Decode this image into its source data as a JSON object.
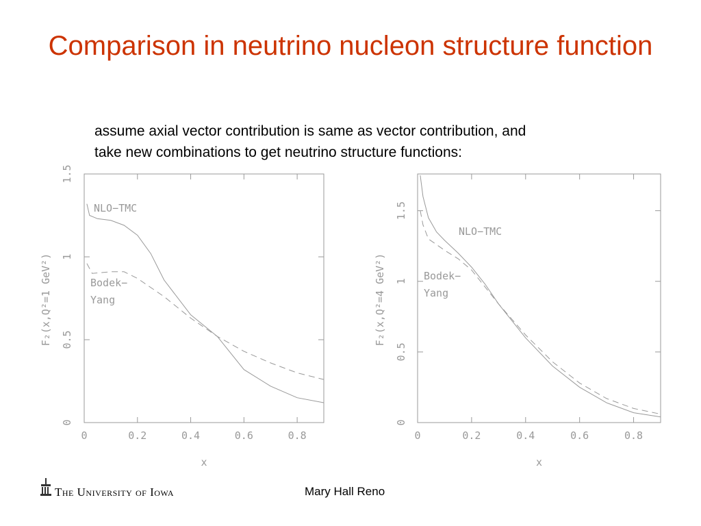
{
  "title": "Comparison in neutrino nucleon structure function",
  "body": [
    "assume axial vector contribution is same as vector contribution, and",
    "take new combinations to get neutrino structure functions:"
  ],
  "footer": {
    "logo": "The University of Iowa",
    "author": "Mary Hall Reno"
  },
  "chart_data": [
    {
      "type": "line",
      "y_label": "F₂(x,Q²=1 GeV²)",
      "x_label": "x",
      "xlim": [
        0,
        0.9
      ],
      "xticks": [
        0,
        0.2,
        0.4,
        0.6,
        0.8
      ],
      "ylim": [
        0,
        1.5
      ],
      "yticks": [
        0,
        0.5,
        1,
        1.5
      ],
      "series": [
        {
          "name": "NLO−TMC",
          "color": "#999999",
          "dash": false,
          "x": [
            0.01,
            0.02,
            0.05,
            0.1,
            0.15,
            0.2,
            0.25,
            0.3,
            0.4,
            0.5,
            0.6,
            0.7,
            0.8,
            0.9
          ],
          "values": [
            1.32,
            1.25,
            1.23,
            1.22,
            1.19,
            1.13,
            1.02,
            0.86,
            0.65,
            0.52,
            0.32,
            0.22,
            0.15,
            0.12
          ]
        },
        {
          "name": "Bodek−Yang",
          "color": "#999999",
          "dash": true,
          "x": [
            0.01,
            0.03,
            0.1,
            0.15,
            0.2,
            0.3,
            0.4,
            0.5,
            0.6,
            0.7,
            0.8,
            0.9
          ],
          "values": [
            0.96,
            0.9,
            0.91,
            0.91,
            0.87,
            0.76,
            0.63,
            0.52,
            0.43,
            0.36,
            0.3,
            0.26
          ]
        }
      ]
    },
    {
      "type": "line",
      "y_label": "F₂(x,Q²=4 GeV²)",
      "x_label": "x",
      "xlim": [
        0,
        0.9
      ],
      "xticks": [
        0,
        0.2,
        0.4,
        0.6,
        0.8
      ],
      "ylim": [
        0,
        1.76
      ],
      "yticks": [
        0,
        0.5,
        1,
        1.5
      ],
      "series": [
        {
          "name": "NLO−TMC",
          "color": "#999999",
          "dash": false,
          "x": [
            0.01,
            0.02,
            0.04,
            0.07,
            0.1,
            0.15,
            0.2,
            0.25,
            0.3,
            0.4,
            0.5,
            0.6,
            0.7,
            0.8,
            0.9
          ],
          "values": [
            1.75,
            1.6,
            1.45,
            1.35,
            1.29,
            1.2,
            1.1,
            0.98,
            0.84,
            0.6,
            0.4,
            0.25,
            0.14,
            0.07,
            0.04
          ]
        },
        {
          "name": "Bodek−Yang",
          "color": "#999999",
          "dash": true,
          "x": [
            0.01,
            0.02,
            0.04,
            0.07,
            0.1,
            0.15,
            0.2,
            0.3,
            0.4,
            0.5,
            0.6,
            0.7,
            0.8,
            0.9
          ],
          "values": [
            1.5,
            1.4,
            1.3,
            1.26,
            1.22,
            1.16,
            1.08,
            0.84,
            0.62,
            0.43,
            0.28,
            0.17,
            0.1,
            0.06
          ]
        }
      ]
    }
  ]
}
